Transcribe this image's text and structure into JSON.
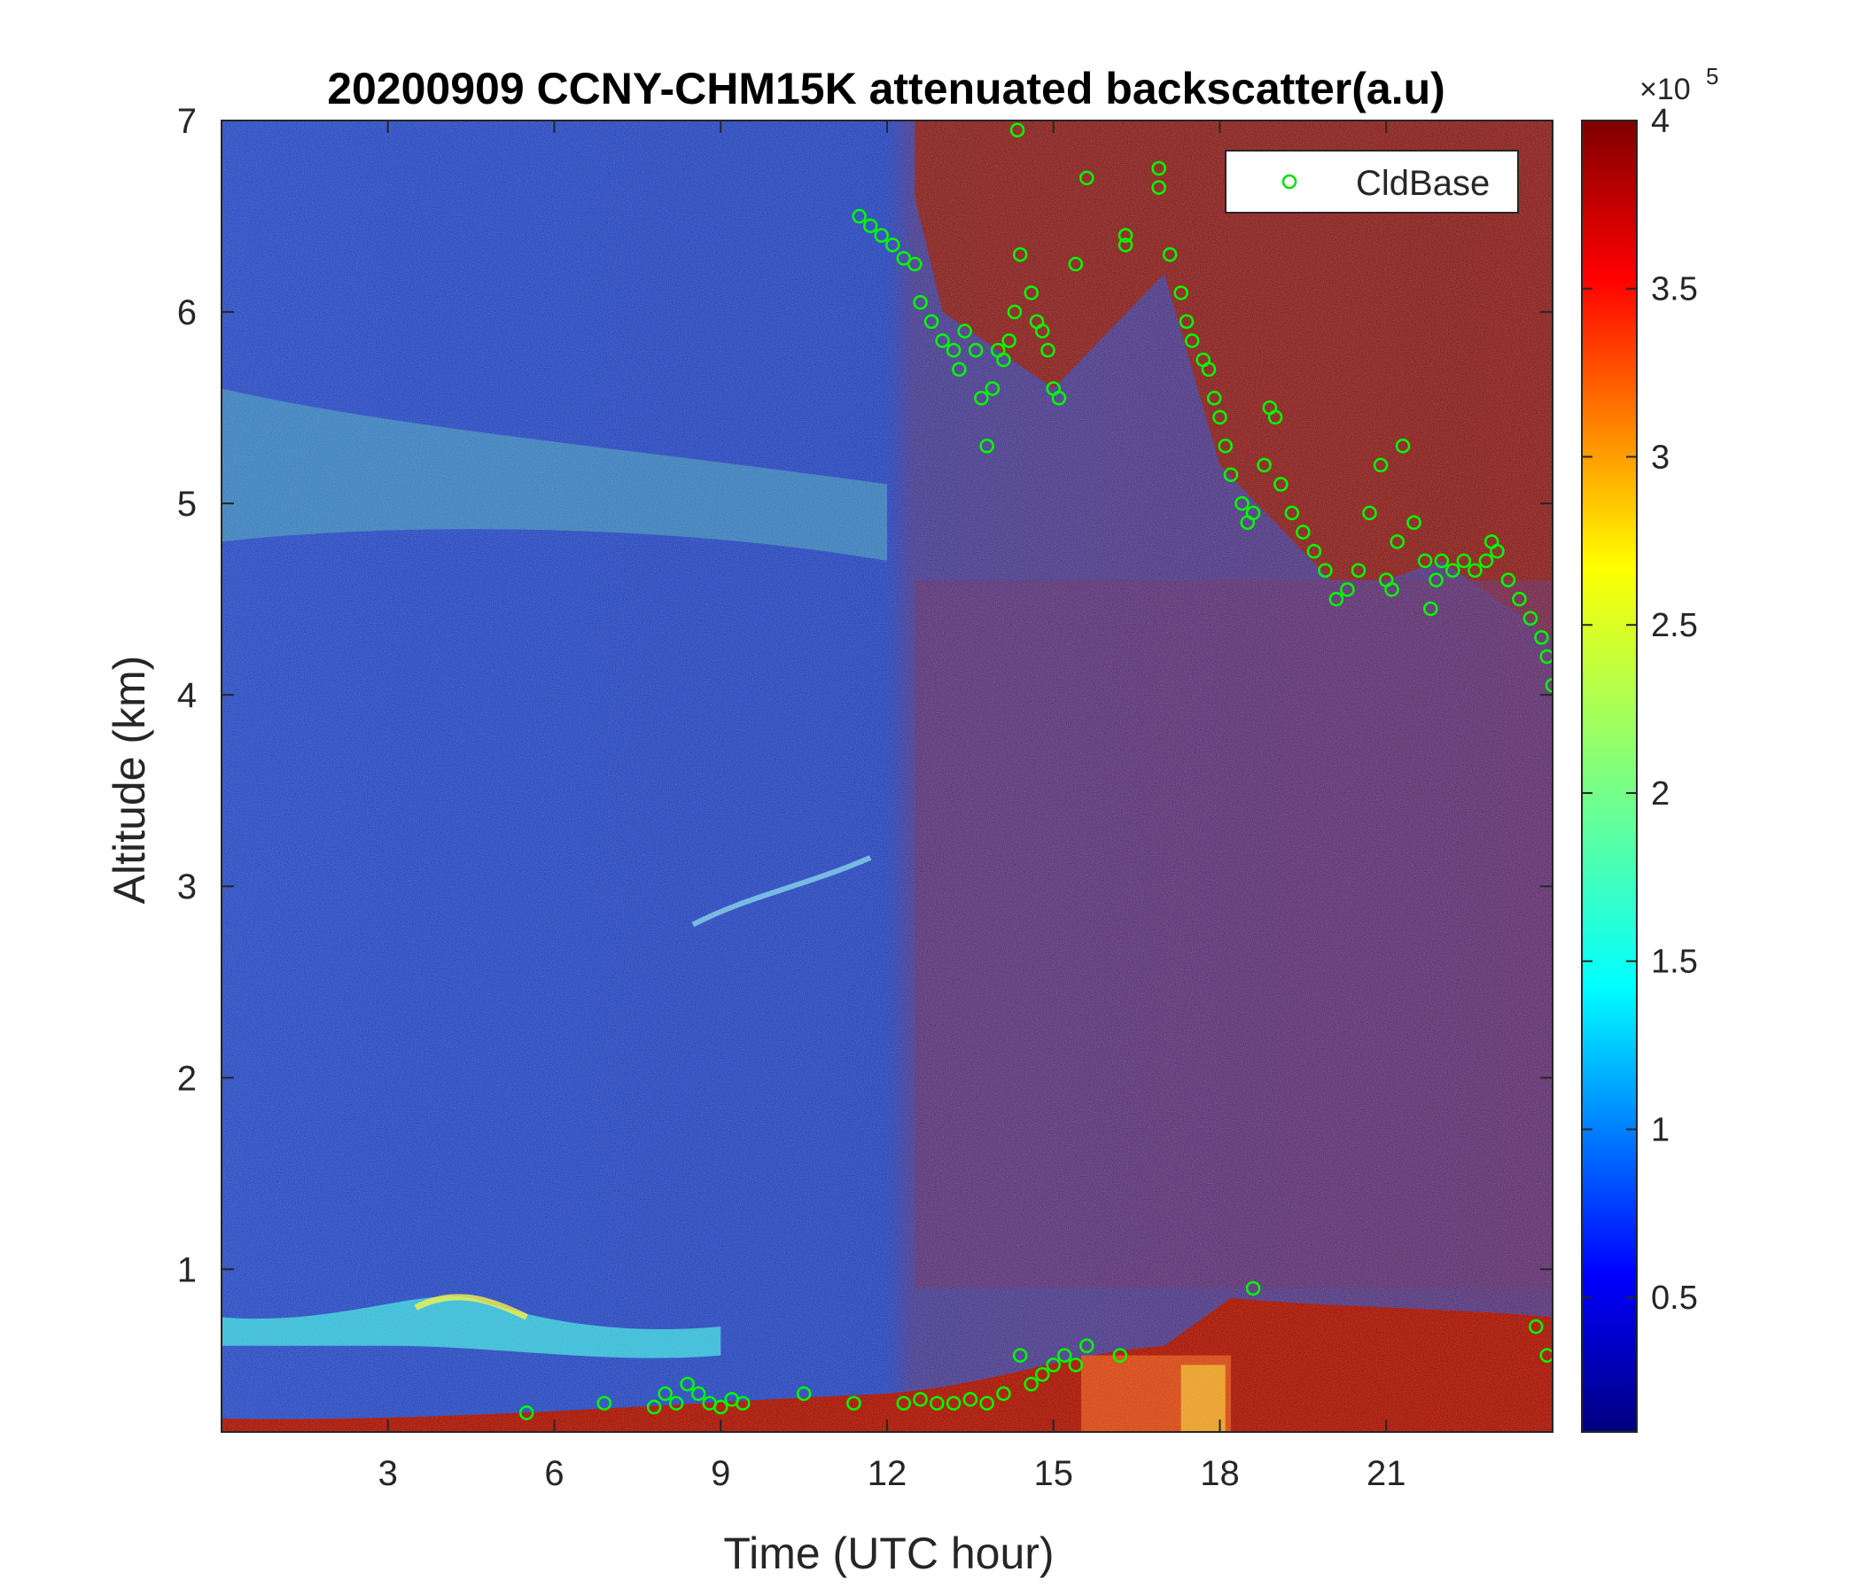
{
  "chart_data": {
    "type": "heatmap",
    "title": "20200909 CCNY-CHM15K attenuated backscatter(a.u)",
    "xlabel": "Time (UTC hour)",
    "ylabel": "Altitude (km)",
    "xlim": [
      0,
      24
    ],
    "ylim": [
      0.15,
      7
    ],
    "xticks": [
      3,
      6,
      9,
      12,
      15,
      18,
      21
    ],
    "yticks": [
      1,
      2,
      3,
      4,
      5,
      6,
      7
    ],
    "colorbar": {
      "colormap": "jet",
      "range": [
        0.1,
        4
      ],
      "ticks": [
        0.5,
        1,
        1.5,
        2,
        2.5,
        3,
        3.5,
        4
      ],
      "exponent_label": "×10",
      "exponent_power": "5"
    },
    "legend": {
      "position": "top-right",
      "entries": [
        "CldBase"
      ]
    },
    "series": [
      {
        "name": "CldBase",
        "marker": "circle",
        "color": "#00ff00",
        "x": [
          11.5,
          11.7,
          11.9,
          12.1,
          12.3,
          12.5,
          12.6,
          12.8,
          13.0,
          13.2,
          13.3,
          13.4,
          13.6,
          13.7,
          13.8,
          13.9,
          14.0,
          14.1,
          14.2,
          14.3,
          14.4,
          14.6,
          14.7,
          14.8,
          14.9,
          15.0,
          15.1,
          15.4,
          15.6,
          16.3,
          16.9,
          16.9,
          17.1,
          17.3,
          17.4,
          17.5,
          17.7,
          17.8,
          17.9,
          18.0,
          18.1,
          18.2,
          18.4,
          18.5,
          18.6,
          18.8,
          18.9,
          19.0,
          19.1,
          19.3,
          19.5,
          19.7,
          19.9,
          20.1,
          20.3,
          20.5,
          20.7,
          20.9,
          21.0,
          21.1,
          21.2,
          21.3,
          21.5,
          21.7,
          21.8,
          21.9,
          22.0,
          22.2,
          22.4,
          22.6,
          22.8,
          22.9,
          23.0,
          23.2,
          23.4,
          23.6,
          23.8,
          23.9,
          24.0,
          14.35,
          16.3,
          5.5,
          6.9,
          7.8,
          8.0,
          8.2,
          8.4,
          8.6,
          8.8,
          9.0,
          9.2,
          9.4,
          10.5,
          11.4,
          12.3,
          12.6,
          12.9,
          13.2,
          13.5,
          13.8,
          14.1,
          14.4,
          14.6,
          14.8,
          15.0,
          15.2,
          15.4,
          15.6,
          16.2,
          18.6,
          23.7,
          23.9
        ],
        "y": [
          6.5,
          6.45,
          6.4,
          6.35,
          6.28,
          6.25,
          6.05,
          5.95,
          5.85,
          5.8,
          5.7,
          5.9,
          5.8,
          5.55,
          5.3,
          5.6,
          5.8,
          5.75,
          5.85,
          6.0,
          6.3,
          6.1,
          5.95,
          5.9,
          5.8,
          5.6,
          5.55,
          6.25,
          6.7,
          6.35,
          6.65,
          6.75,
          6.3,
          6.1,
          5.95,
          5.85,
          5.75,
          5.7,
          5.55,
          5.45,
          5.3,
          5.15,
          5.0,
          4.9,
          4.95,
          5.2,
          5.5,
          5.45,
          5.1,
          4.95,
          4.85,
          4.75,
          4.65,
          4.5,
          4.55,
          4.65,
          4.95,
          5.2,
          4.6,
          4.55,
          4.8,
          5.3,
          4.9,
          4.7,
          4.45,
          4.6,
          4.7,
          4.65,
          4.7,
          4.65,
          4.7,
          4.8,
          4.75,
          4.6,
          4.5,
          4.4,
          4.3,
          4.2,
          4.05,
          6.95,
          6.4,
          0.25,
          0.3,
          0.28,
          0.35,
          0.3,
          0.4,
          0.35,
          0.3,
          0.28,
          0.32,
          0.3,
          0.35,
          0.3,
          0.3,
          0.32,
          0.3,
          0.3,
          0.32,
          0.3,
          0.35,
          0.55,
          0.4,
          0.45,
          0.5,
          0.55,
          0.5,
          0.6,
          0.55,
          0.9,
          0.7,
          0.55
        ]
      }
    ]
  }
}
